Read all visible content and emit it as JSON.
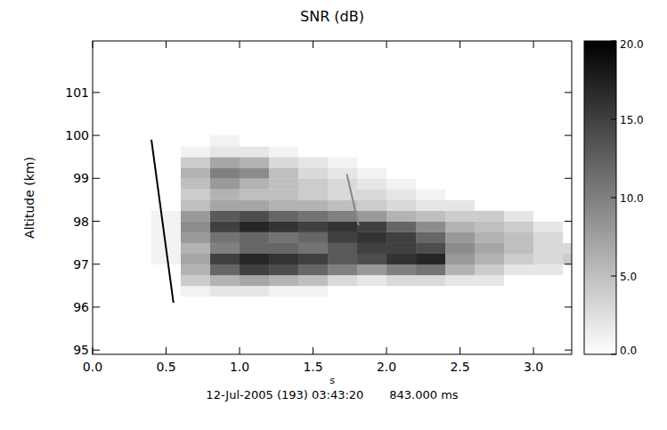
{
  "chart_data": {
    "type": "heatmap",
    "title": "SNR (dB)",
    "y_label": "Altitude (km)",
    "x_label": "s",
    "subtitle": "12-Jul-2005 (193) 03:43:20       843.000 ms",
    "xlim": [
      0,
      3.26
    ],
    "ylim": [
      94.9,
      102.2
    ],
    "xticks": [
      {
        "value": 0,
        "label": "0.0"
      },
      {
        "value": 0.5,
        "label": "0.5"
      },
      {
        "value": 1,
        "label": "1.0"
      },
      {
        "value": 1.5,
        "label": "1.5"
      },
      {
        "value": 2,
        "label": "2.0"
      },
      {
        "value": 2.5,
        "label": "2.5"
      },
      {
        "value": 3,
        "label": "3.0"
      }
    ],
    "yticks": [
      95,
      96,
      97,
      98,
      99,
      100,
      101
    ],
    "cells": {
      "x_bins": [
        0.2,
        0.4,
        0.6,
        0.8,
        1.0,
        1.2,
        1.4,
        1.6,
        1.8,
        2.0,
        2.2,
        2.4,
        2.6,
        2.8,
        3.0,
        3.2,
        3.4
      ],
      "y_bins": [
        96.0,
        96.25,
        96.5,
        96.75,
        97.0,
        97.25,
        97.5,
        97.75,
        98.0,
        98.25,
        98.5,
        98.75,
        99.0,
        99.25,
        99.5,
        99.75,
        100.0
      ],
      "values": [
        [
          0,
          0,
          0,
          0,
          0,
          0,
          0,
          0,
          0,
          0,
          0,
          0,
          0,
          0,
          0,
          0
        ],
        [
          0,
          0,
          1,
          2,
          2,
          1,
          1,
          0,
          0,
          0,
          0,
          0,
          0,
          0,
          0,
          0
        ],
        [
          0,
          0,
          4,
          6,
          7,
          6,
          5,
          3,
          2,
          3,
          3,
          2,
          2,
          0,
          0,
          0
        ],
        [
          0,
          0,
          6,
          12,
          15,
          14,
          12,
          10,
          8,
          10,
          11,
          6,
          4,
          2,
          2,
          0
        ],
        [
          0,
          1,
          7,
          15,
          17,
          16,
          15,
          13,
          14,
          16,
          17,
          8,
          6,
          4,
          3,
          4
        ],
        [
          0,
          1,
          6,
          10,
          12,
          12,
          11,
          13,
          15,
          15,
          14,
          9,
          7,
          5,
          3,
          3
        ],
        [
          0,
          1,
          8,
          11,
          12,
          11,
          12,
          15,
          16,
          15,
          12,
          8,
          6,
          5,
          3,
          0
        ],
        [
          0,
          1,
          9,
          15,
          17,
          16,
          15,
          16,
          15,
          12,
          9,
          6,
          5,
          4,
          2,
          0
        ],
        [
          0,
          1,
          8,
          13,
          14,
          12,
          11,
          10,
          8,
          6,
          5,
          4,
          4,
          2,
          0,
          0
        ],
        [
          0,
          0,
          5,
          7,
          7,
          6,
          6,
          5,
          4,
          3,
          2,
          2,
          0,
          0,
          0,
          0
        ],
        [
          0,
          0,
          4,
          6,
          5,
          5,
          4,
          3,
          3,
          2,
          1,
          0,
          0,
          0,
          0,
          0
        ],
        [
          0,
          0,
          5,
          8,
          6,
          5,
          4,
          3,
          2,
          1,
          0,
          0,
          0,
          0,
          0,
          0
        ],
        [
          0,
          0,
          6,
          10,
          9,
          5,
          3,
          2,
          1,
          0,
          0,
          0,
          0,
          0,
          0,
          0
        ],
        [
          0,
          0,
          4,
          7,
          6,
          3,
          2,
          1,
          0,
          0,
          0,
          0,
          0,
          0,
          0,
          0
        ],
        [
          0,
          0,
          1,
          2,
          2,
          1,
          0,
          0,
          0,
          0,
          0,
          0,
          0,
          0,
          0,
          0
        ],
        [
          0,
          0,
          0,
          1,
          0,
          0,
          0,
          0,
          0,
          0,
          0,
          0,
          0,
          0,
          0,
          0
        ]
      ]
    },
    "trails": [
      {
        "x": [
          0.4,
          0.55
        ],
        "y": [
          99.9,
          96.1
        ],
        "color": "#000000"
      },
      {
        "x": [
          1.73,
          1.81
        ],
        "y": [
          99.1,
          97.9
        ],
        "color": "#888888"
      }
    ],
    "colorbar": {
      "range": [
        0,
        20
      ],
      "ticks": [
        {
          "value": 0,
          "label": "0.0"
        },
        {
          "value": 5,
          "label": "5.0"
        },
        {
          "value": 10,
          "label": "10.0"
        },
        {
          "value": 15,
          "label": "15.0"
        },
        {
          "value": 20,
          "label": "20.0"
        }
      ]
    }
  }
}
